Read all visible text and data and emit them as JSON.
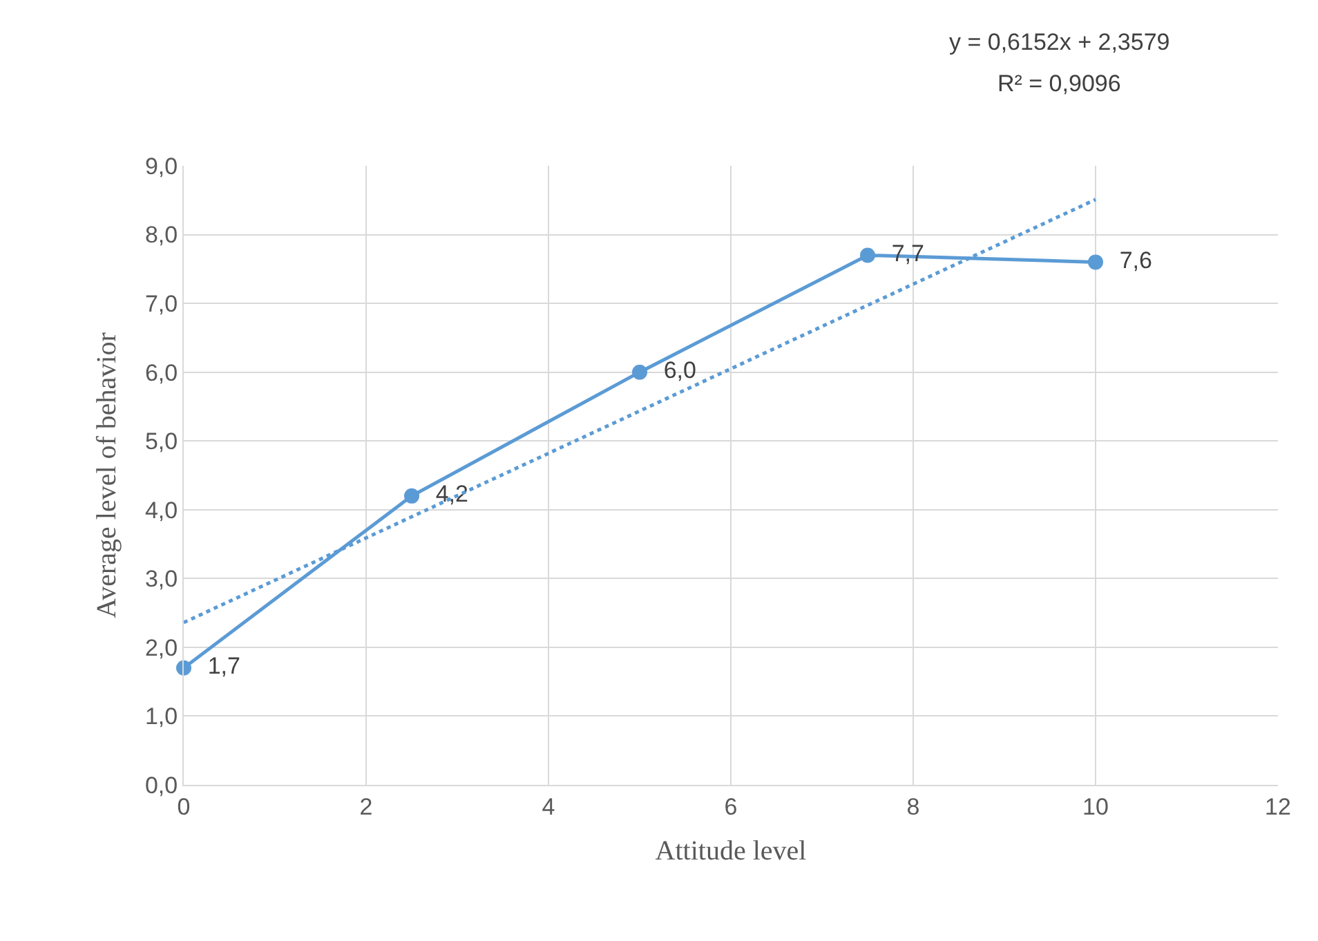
{
  "chart_data": {
    "type": "line",
    "xlabel": "Attitude level",
    "ylabel": "Average level of behavior",
    "x": [
      0,
      2.5,
      5,
      7.5,
      10
    ],
    "series": [
      {
        "color": "#5b9bd5",
        "values": [
          1.7,
          4.2,
          6.0,
          7.7,
          7.6
        ],
        "value_labels": [
          "1,7",
          "4,2",
          "6,0",
          "7,7",
          "7,6"
        ],
        "marker": "circle",
        "line_style": "solid"
      },
      {
        "type": "line",
        "color": "#5b9bd5",
        "x": [
          0,
          10
        ],
        "values": [
          2.36,
          8.51
        ],
        "marker": "none",
        "line_style": "dotted"
      }
    ],
    "annotations": [
      "y = 0,6152x + 2,3579",
      "R² = 0,9096"
    ],
    "xlim": [
      0,
      12
    ],
    "xticks": [
      0,
      2,
      4,
      6,
      8,
      10,
      12
    ],
    "ylim": [
      0,
      9
    ],
    "yticks": [
      {
        "value": 0,
        "label": "0,0"
      },
      {
        "value": 1,
        "label": "1,0"
      },
      {
        "value": 2,
        "label": "2,0"
      },
      {
        "value": 3,
        "label": "3,0"
      },
      {
        "value": 4,
        "label": "4,0"
      },
      {
        "value": 5,
        "label": "5,0"
      },
      {
        "value": 6,
        "label": "6,0"
      },
      {
        "value": 7,
        "label": "7,0"
      },
      {
        "value": 8,
        "label": "8,0"
      },
      {
        "value": 9,
        "label": "9,0"
      }
    ],
    "grid": true
  }
}
